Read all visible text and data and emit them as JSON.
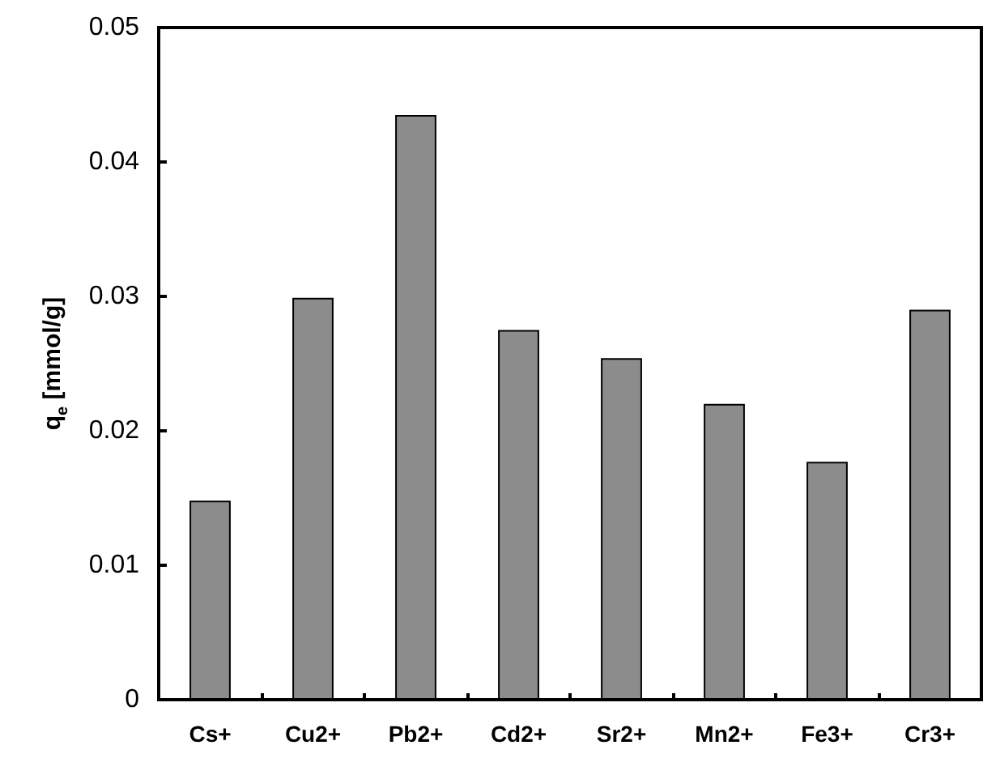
{
  "chart_data": {
    "type": "bar",
    "ylabel": "q$_{e}$ [mmol/g]",
    "categories": [
      "Cs+",
      "Cu2+",
      "Pb2+",
      "Cd2+",
      "Sr2+",
      "Mn2+",
      "Fe3+",
      "Cr3+"
    ],
    "values": [
      0.0148,
      0.0299,
      0.0435,
      0.0275,
      0.0254,
      0.022,
      0.0177,
      0.029
    ],
    "color": "#8c8c8c",
    "ylim": [
      0,
      0.05
    ],
    "yticks": [
      0,
      0.01,
      0.02,
      0.03,
      0.04,
      0.05
    ],
    "grid": false
  }
}
